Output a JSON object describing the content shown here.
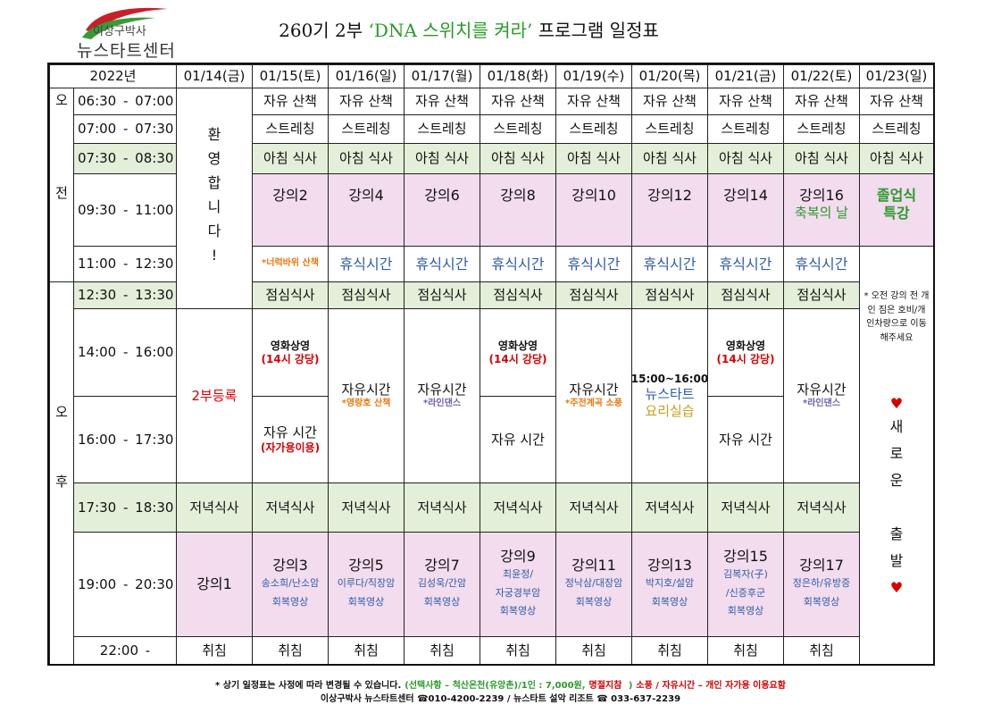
{
  "logo": {
    "top": "이상구박사",
    "bottom": "뉴스타트센터"
  },
  "title": {
    "before": "260기 2부 ",
    "highlight": "‘DNA 스위치를 켜라’",
    "after": " 프로그램 일정표"
  },
  "table": {
    "corner": "2022년",
    "dates": [
      "01/14(금)",
      "01/15(토)",
      "01/16(일)",
      "01/17(월)",
      "01/18(화)",
      "01/19(수)",
      "01/20(목)",
      "01/21(금)",
      "01/22(토)",
      "01/23(일)"
    ],
    "periods": [
      "오전",
      "오후"
    ],
    "times": [
      "06:30 - 07:00",
      "07:00 - 07:30",
      "07:30 - 08:30",
      "09:30 - 11:00",
      "11:00 - 12:30",
      "12:30 - 13:30",
      "14:00 - 16:00",
      "16:00 - 17:30",
      "17:30 - 18:30",
      "19:00 - 20:30",
      "22:00 -"
    ],
    "first_day": {
      "welcome": "환영합니다!",
      "registration": "2부등록",
      "dinner": "저녁식사",
      "lecture": "강의1",
      "sleep": "취침"
    },
    "days": [
      {
        "walk": "자유 산책",
        "stretch": "스트레칭",
        "breakfast": "아침 식사",
        "morning": [
          "강의2"
        ],
        "rest": "*너럭바위 산책",
        "lunch": "점심식사",
        "afternoon_top": [
          "영화상영",
          "(14시 강당)"
        ],
        "afternoon_bottom": [
          "자유 시간",
          "(자가용이용)"
        ],
        "dinner": "저녁식사",
        "evening": [
          "강의3",
          "송소희/난소암",
          "회복영상"
        ],
        "sleep": "취침"
      },
      {
        "walk": "자유 산책",
        "stretch": "스트레칭",
        "breakfast": "아침 식사",
        "morning": [
          "강의4"
        ],
        "rest": "휴식시간",
        "lunch": "점심식사",
        "afternoon": [
          "자유시간",
          "*영랑호 산책"
        ],
        "dinner": "저녁식사",
        "evening": [
          "강의5",
          "이루다/직장암",
          "회복영상"
        ],
        "sleep": "취침"
      },
      {
        "walk": "자유 산책",
        "stretch": "스트레칭",
        "breakfast": "아침 식사",
        "morning": [
          "강의6"
        ],
        "rest": "휴식시간",
        "lunch": "점심식사",
        "afternoon": [
          "자유시간",
          "*라인댄스"
        ],
        "dinner": "저녁식사",
        "evening": [
          "강의7",
          "김성욱/간암",
          "회복영상"
        ],
        "sleep": "취침"
      },
      {
        "walk": "자유 산책",
        "stretch": "스트레칭",
        "breakfast": "아침 식사",
        "morning": [
          "강의8"
        ],
        "rest": "휴식시간",
        "lunch": "점심식사",
        "afternoon_top": [
          "영화상영",
          "(14시 강당)"
        ],
        "afternoon_bottom": [
          "자유 시간"
        ],
        "dinner": "저녁식사",
        "evening": [
          "강의9",
          "최윤정/",
          "자궁경부암",
          "회복영상"
        ],
        "sleep": "취침"
      },
      {
        "walk": "자유 산책",
        "stretch": "스트레칭",
        "breakfast": "아침 식사",
        "morning": [
          "강의10"
        ],
        "rest": "휴식시간",
        "lunch": "점심식사",
        "afternoon": [
          "자유시간",
          "*주전계곡 소풍"
        ],
        "dinner": "저녁식사",
        "evening": [
          "강의11",
          "정낙삼/대장암",
          "회복영상"
        ],
        "sleep": "취침"
      },
      {
        "walk": "자유 산책",
        "stretch": "스트레칭",
        "breakfast": "아침 식사",
        "morning": [
          "강의12"
        ],
        "rest": "휴식시간",
        "lunch": "점심식사",
        "afternoon": [
          "15:00~16:00",
          "뉴스타트",
          "요리실습"
        ],
        "dinner": "저녁식사",
        "evening": [
          "강의13",
          "박지호/설암",
          "회복영상"
        ],
        "sleep": "취침"
      },
      {
        "walk": "자유 산책",
        "stretch": "스트레칭",
        "breakfast": "아침 식사",
        "morning": [
          "강의14"
        ],
        "rest": "휴식시간",
        "lunch": "점심식사",
        "afternoon_top": [
          "영화상영",
          "(14시 강당)"
        ],
        "afternoon_bottom": [
          "자유 시간"
        ],
        "dinner": "저녁식사",
        "evening": [
          "강의15",
          "김복자(子)",
          "/신증후군",
          "회복영상"
        ],
        "sleep": "취침"
      },
      {
        "walk": "자유 산책",
        "stretch": "스트레칭",
        "breakfast": "아침 식사",
        "morning": [
          "강의16",
          "축복의 날"
        ],
        "rest": "휴식시간",
        "lunch": "점심식사",
        "afternoon": [
          "자유시간",
          "*라인댄스"
        ],
        "dinner": "저녁식사",
        "evening": [
          "강의17",
          "정은하/유방증",
          "회복영상"
        ],
        "sleep": "취침"
      }
    ],
    "last_day": {
      "walk": "자유 산책",
      "stretch": "스트레칭",
      "breakfast": "아침 식사",
      "morning": [
        "졸업식",
        "특강"
      ],
      "notice": "* 오전 강의 전 개인 짐은 호비/개인차량으로 이동해주세요",
      "hearts": [
        "♥",
        "♥"
      ],
      "message": "새로운 출발"
    }
  },
  "footer": {
    "notes": [
      "* 상기 일정표는 사정에 따라 변경될 수 있습니다.",
      "(선택사항 – 척산온천(유앙촌)/1인 : 7,000원,",
      "명절지참",
      " )",
      "소풍 / 자유시간 – 개인 자가용 이용요함"
    ],
    "contact": "이상구박사 뉴스타트센터 ☎010-4200-2239 /  뉴스타트 설악 리조트 ☎ 033-637-2239"
  }
}
